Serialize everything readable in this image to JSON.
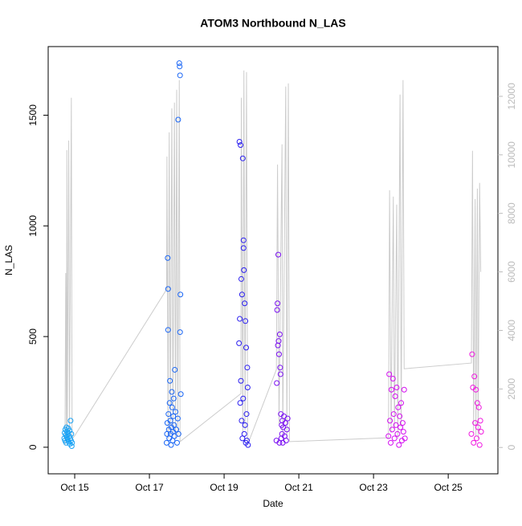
{
  "chart_data": {
    "type": "scatter",
    "title": "ATOM3 Northbound N_LAS",
    "xlabel": "Date",
    "ylabel": "N_LAS",
    "xlim": [
      14.29,
      26.33
    ],
    "xticks": [
      {
        "value": 15,
        "label": "Oct 15"
      },
      {
        "value": 17,
        "label": "Oct 17"
      },
      {
        "value": 19,
        "label": "Oct 19"
      },
      {
        "value": 21,
        "label": "Oct 21"
      },
      {
        "value": 23,
        "label": "Oct 23"
      },
      {
        "value": 25,
        "label": "Oct 25"
      }
    ],
    "ylim": [
      -120,
      1810
    ],
    "yticks": [
      0,
      500,
      1000,
      1500
    ],
    "y2lim": [
      -900,
      13700
    ],
    "y2ticks": [
      0,
      2000,
      4000,
      6000,
      8000,
      10000,
      12000
    ],
    "y2color": "#bbbbbb",
    "series": [
      {
        "type": "line",
        "axis": "y2",
        "color": "#cccccc",
        "x": [
          14.74,
          14.76,
          14.78,
          14.79,
          14.8,
          14.84,
          14.86,
          14.91,
          14.93,
          15.0,
          17.46,
          17.47,
          17.5,
          17.53,
          17.56,
          17.6,
          17.63,
          17.67,
          17.7,
          17.73,
          17.76,
          17.8,
          17.82,
          19.45,
          19.46,
          19.5,
          19.53,
          19.56,
          19.6,
          19.63,
          20.4,
          20.43,
          20.47,
          20.55,
          20.57,
          20.65,
          20.68,
          20.72,
          20.75,
          23.4,
          23.43,
          23.47,
          23.53,
          23.56,
          23.62,
          23.65,
          23.71,
          23.74,
          23.79,
          23.82,
          25.62,
          25.65,
          25.68,
          25.72,
          25.74,
          25.78,
          25.8,
          25.84,
          25.87
        ],
        "values": [
          100,
          5960,
          200,
          10160,
          300,
          10490,
          200,
          11950,
          300,
          400,
          5400,
          9945,
          300,
          10770,
          400,
          11590,
          500,
          11785,
          300,
          12225,
          400,
          12555,
          200,
          1840,
          11950,
          500,
          12885,
          600,
          12830,
          100,
          2665,
          9670,
          800,
          10360,
          400,
          12335,
          300,
          12440,
          200,
          330,
          8790,
          500,
          8570,
          600,
          8300,
          300,
          12060,
          700,
          12555,
          2690,
          2885,
          10140,
          500,
          8490,
          400,
          8845,
          300,
          9040,
          6000
        ]
      },
      {
        "color": "#1aa3f5",
        "x": [
          14.72,
          14.73,
          14.74,
          14.75,
          14.76,
          14.77,
          14.78,
          14.79,
          14.8,
          14.81,
          14.82,
          14.83,
          14.84,
          14.85,
          14.86,
          14.87,
          14.88,
          14.89,
          14.9,
          14.91,
          14.92,
          14.93
        ],
        "values": [
          40,
          65,
          30,
          80,
          55,
          20,
          90,
          45,
          70,
          35,
          60,
          85,
          25,
          50,
          75,
          15,
          40,
          120,
          30,
          60,
          5,
          20
        ]
      },
      {
        "color": "#1a66f5",
        "x": [
          17.46,
          17.47,
          17.48,
          17.49,
          17.5,
          17.5,
          17.51,
          17.52,
          17.53,
          17.54,
          17.55,
          17.56,
          17.57,
          17.58,
          17.59,
          17.6,
          17.61,
          17.62,
          17.63,
          17.64,
          17.65,
          17.66,
          17.67,
          17.68,
          17.7,
          17.72,
          17.74,
          17.76,
          17.77,
          17.78,
          17.8,
          17.81,
          17.82,
          17.82,
          17.83,
          17.84
        ],
        "values": [
          20,
          60,
          110,
          855,
          715,
          530,
          150,
          80,
          40,
          200,
          300,
          120,
          60,
          10,
          90,
          250,
          180,
          30,
          70,
          140,
          220,
          100,
          50,
          350,
          160,
          80,
          20,
          130,
          1480,
          60,
          1735,
          1720,
          1680,
          520,
          690,
          240
        ]
      },
      {
        "color": "#2a1ef0",
        "x": [
          19.4,
          19.41,
          19.42,
          19.43,
          19.44,
          19.45,
          19.46,
          19.47,
          19.48,
          19.49,
          19.5,
          19.51,
          19.52,
          19.52,
          19.53,
          19.54,
          19.55,
          19.56,
          19.57,
          19.58,
          19.59,
          19.6,
          19.61,
          19.62,
          19.63,
          19.64
        ],
        "values": [
          470,
          1380,
          580,
          200,
          1365,
          300,
          760,
          120,
          690,
          40,
          1305,
          220,
          935,
          900,
          800,
          60,
          650,
          100,
          570,
          20,
          450,
          150,
          30,
          360,
          270,
          10
        ]
      },
      {
        "color": "#7b10f2",
        "x": [
          20.4,
          20.41,
          20.42,
          20.43,
          20.44,
          20.45,
          20.46,
          20.47,
          20.48,
          20.49,
          20.5,
          20.51,
          20.52,
          20.53,
          20.54,
          20.55,
          20.56,
          20.57,
          20.58,
          20.6,
          20.62,
          20.64,
          20.66,
          20.68,
          20.7
        ],
        "values": [
          30,
          290,
          620,
          650,
          460,
          870,
          480,
          420,
          20,
          510,
          360,
          330,
          150,
          40,
          100,
          60,
          120,
          20,
          90,
          140,
          50,
          110,
          30,
          80,
          130
        ]
      },
      {
        "color": "#d40ff0",
        "x": [
          23.4,
          23.42,
          23.44,
          23.46,
          23.48,
          23.5,
          23.52,
          23.54,
          23.56,
          23.58,
          23.6,
          23.62,
          23.64,
          23.66,
          23.68,
          23.7,
          23.72,
          23.74,
          23.76,
          23.78,
          23.8,
          23.82,
          23.84
        ],
        "values": [
          50,
          330,
          120,
          20,
          260,
          80,
          310,
          150,
          40,
          230,
          100,
          270,
          60,
          180,
          10,
          140,
          90,
          200,
          30,
          110,
          70,
          260,
          40
        ]
      },
      {
        "color": "#f01ae0",
        "x": [
          25.62,
          25.64,
          25.66,
          25.68,
          25.7,
          25.72,
          25.74,
          25.76,
          25.78,
          25.8,
          25.82,
          25.84,
          25.86,
          25.88
        ],
        "values": [
          60,
          420,
          270,
          20,
          320,
          110,
          260,
          40,
          200,
          90,
          180,
          10,
          120,
          70
        ]
      }
    ]
  }
}
